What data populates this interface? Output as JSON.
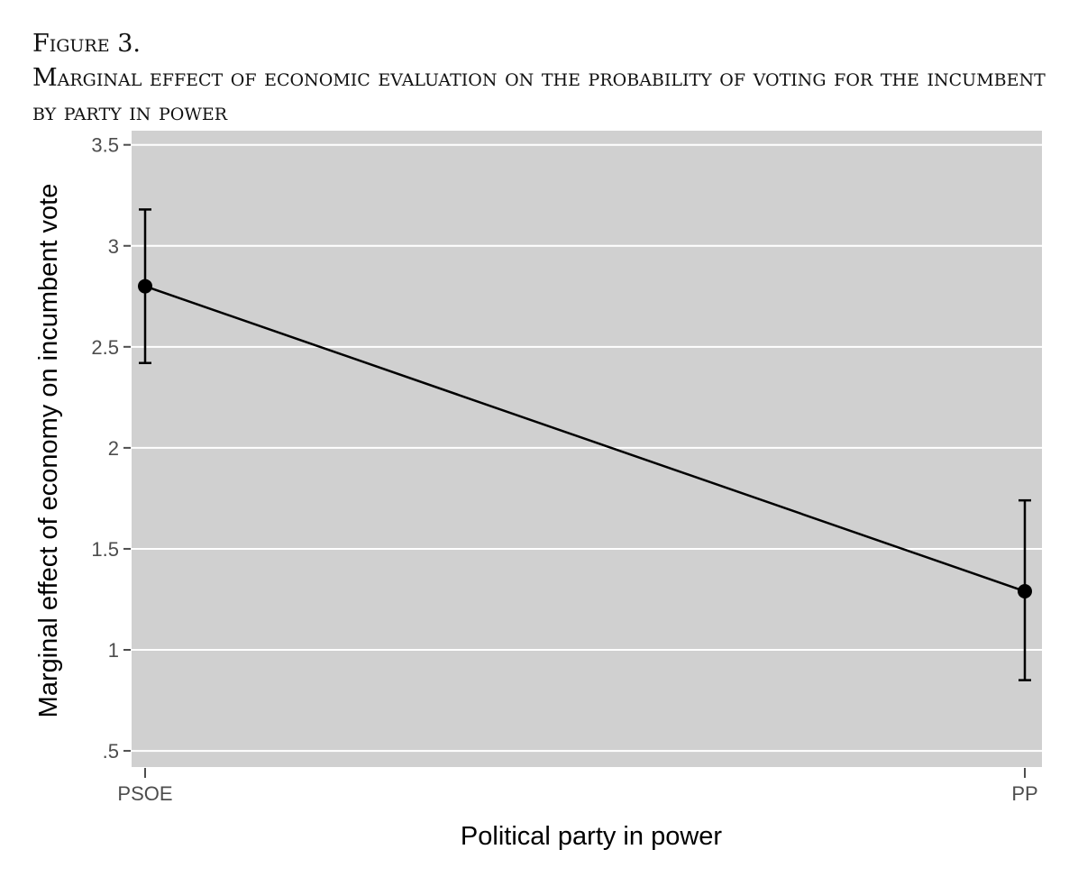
{
  "caption": {
    "figure_label": "Figure 3.",
    "figure_title": "Marginal effect of economic evaluation on the probability of voting for the incumbent by party in power"
  },
  "chart_data": {
    "type": "line",
    "categories": [
      "PSOE",
      "PP"
    ],
    "series": [
      {
        "values": [
          2.8,
          1.29
        ],
        "ci_low": [
          2.42,
          0.85
        ],
        "ci_high": [
          3.18,
          1.74
        ]
      }
    ],
    "xlabel": "Political party in power",
    "ylabel": "Marginal effect of economy on incumbent vote",
    "ylim": [
      0.42,
      3.57
    ],
    "yticks": [
      0.5,
      1,
      1.5,
      2,
      2.5,
      3,
      3.5
    ],
    "ytick_labels": [
      ".5",
      "1",
      "1.5",
      "2",
      "2.5",
      "3",
      "3.5"
    ],
    "grid": true,
    "colors": {
      "panel_background": "#d0d0d0",
      "grid": "#ffffff",
      "line": "#000000",
      "tick": "#4d4d4d"
    }
  }
}
